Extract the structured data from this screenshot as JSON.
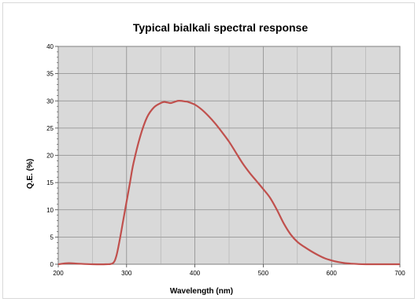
{
  "chart_data": {
    "type": "line",
    "title": "Typical bialkali spectral response",
    "xlabel": "Wavelength (nm)",
    "ylabel": "Q.E. (%)",
    "xlim": [
      200,
      700
    ],
    "ylim": [
      0,
      40
    ],
    "x_ticks": [
      "200",
      "300",
      "400",
      "500",
      "600",
      "700"
    ],
    "y_ticks": [
      "0",
      "5",
      "10",
      "15",
      "20",
      "25",
      "30",
      "35",
      "40"
    ],
    "grid": true,
    "plot_background": "#d9d9d9",
    "grid_color": "#8c8c8c",
    "series": [
      {
        "color": "#c0504d",
        "x": [
          200,
          215,
          230,
          250,
          270,
          280,
          285,
          290,
          295,
          300,
          305,
          310,
          320,
          330,
          340,
          350,
          355,
          360,
          365,
          370,
          375,
          380,
          385,
          390,
          400,
          410,
          420,
          430,
          440,
          450,
          460,
          470,
          480,
          490,
          500,
          510,
          520,
          530,
          540,
          550,
          560,
          570,
          580,
          590,
          600,
          610,
          620,
          630,
          640,
          650,
          660,
          680,
          700
        ],
        "y": [
          0,
          0.2,
          0.1,
          0,
          0,
          0.2,
          1.5,
          4.5,
          8,
          11.5,
          15,
          18.5,
          23.5,
          27,
          28.8,
          29.6,
          29.8,
          29.7,
          29.6,
          29.8,
          30,
          30,
          29.9,
          29.8,
          29.3,
          28.4,
          27.2,
          25.8,
          24.2,
          22.5,
          20.5,
          18.5,
          16.8,
          15.3,
          13.8,
          12.2,
          10,
          7.5,
          5.5,
          4.1,
          3.2,
          2.4,
          1.7,
          1.1,
          0.7,
          0.4,
          0.2,
          0.1,
          0.03,
          0,
          0,
          0,
          0
        ]
      }
    ]
  }
}
